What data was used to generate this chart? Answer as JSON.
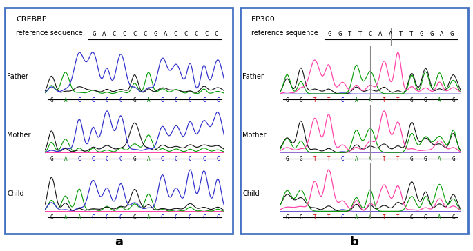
{
  "panel_a_title": "CREBBP",
  "panel_b_title": "EP300",
  "ref_label": "reference sequence",
  "panel_a_ref_seq": [
    "G",
    "A",
    "C",
    "C",
    "C",
    "C",
    "G",
    "A",
    "C",
    "C",
    "C",
    "C",
    "C"
  ],
  "panel_b_ref_seq": [
    "G",
    "G",
    "T",
    "T",
    "C",
    "A",
    "A",
    "T",
    "T",
    "G",
    "G",
    "A",
    "G"
  ],
  "panel_a_seqs": {
    "Father": [
      "G",
      "A",
      "C",
      "C",
      "C",
      "C",
      "G",
      "A",
      "C",
      "C",
      "C",
      "C",
      "C"
    ],
    "Mother": [
      "G",
      "A",
      "C",
      "C",
      "C",
      "C",
      "G",
      "A",
      "C",
      "C",
      "C",
      "C",
      "C"
    ],
    "Child": [
      "G",
      "A",
      "A",
      "C",
      "C",
      "C",
      "G",
      "A",
      "C",
      "C",
      "C",
      "C",
      "C"
    ]
  },
  "panel_b_seqs": {
    "Father": [
      "G",
      "G",
      "T",
      "T",
      "C",
      "A",
      "A",
      "T",
      "T",
      "G",
      "G",
      "A",
      "G"
    ],
    "Mother": [
      "G",
      "G",
      "T",
      "T",
      "C",
      "A",
      "A",
      "T",
      "T",
      "G",
      "G",
      "A",
      "G"
    ],
    "Child": [
      "G",
      "G",
      "T",
      "T",
      "C",
      "A",
      "A",
      "T",
      "T",
      "G",
      "G",
      "A",
      "G"
    ]
  },
  "panel_b_highlight_col": 6,
  "dna_colors": {
    "G": "#000000",
    "A": "#008000",
    "C": "#0000cc",
    "T": "#cc0000"
  },
  "border_color": "#4472c4",
  "bg_color": "#ffffff"
}
